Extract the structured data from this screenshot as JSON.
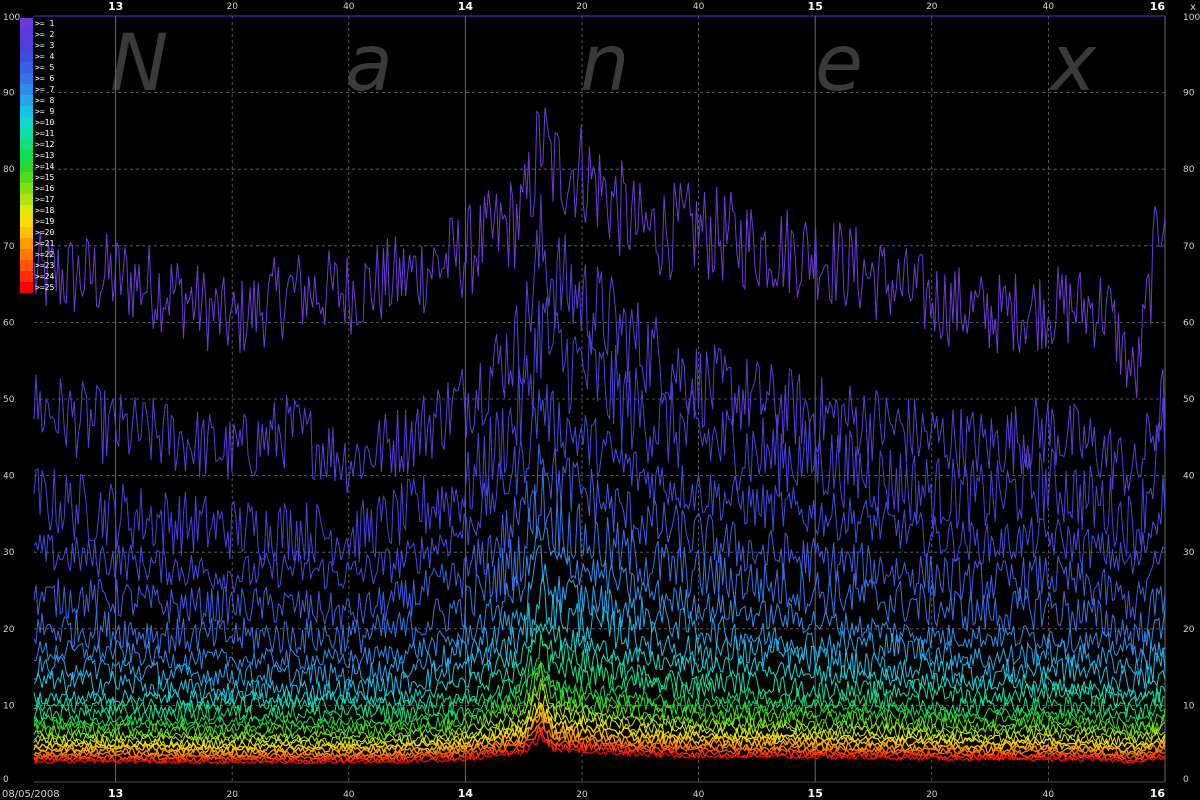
{
  "watermark": {
    "letters": [
      "N",
      "a",
      "n",
      "e",
      "x"
    ]
  },
  "date_label": "08/05/2008",
  "corner_label": "x",
  "chart_data": {
    "type": "line",
    "title": "",
    "xlabel": "",
    "ylabel": "",
    "ylim": [
      0,
      100
    ],
    "xlim": [
      "12:46",
      "16:00"
    ],
    "grid": true,
    "legend_position": "top-left",
    "y_ticks": [
      0,
      10,
      20,
      30,
      40,
      50,
      60,
      70,
      80,
      90,
      100
    ],
    "x_ticks": [
      {
        "time": "13:00",
        "label": "13",
        "major": true
      },
      {
        "time": "13:20",
        "label": "20",
        "major": false
      },
      {
        "time": "13:40",
        "label": "40",
        "major": false
      },
      {
        "time": "14:00",
        "label": "14",
        "major": true
      },
      {
        "time": "14:20",
        "label": "20",
        "major": false
      },
      {
        "time": "14:40",
        "label": "40",
        "major": false
      },
      {
        "time": "15:00",
        "label": "15",
        "major": true
      },
      {
        "time": "15:20",
        "label": "20",
        "major": false
      },
      {
        "time": "15:40",
        "label": "40",
        "major": false
      },
      {
        "time": "16:00",
        "label": "16",
        "major": true
      }
    ],
    "x": [
      "12:46",
      "13:00",
      "13:10",
      "13:20",
      "13:30",
      "13:40",
      "13:50",
      "14:00",
      "14:10",
      "14:13",
      "14:15",
      "14:20",
      "14:30",
      "14:40",
      "14:50",
      "15:00",
      "15:10",
      "15:20",
      "15:30",
      "15:40",
      "15:50",
      "15:55",
      "16:00"
    ],
    "series": [
      {
        "name": ">= 1",
        "color": "#6a3bd8",
        "values": [
          66,
          66,
          64,
          60,
          64,
          64,
          66,
          69,
          74,
          84,
          80,
          80,
          72,
          72,
          70,
          69,
          66,
          63,
          61,
          62,
          62,
          52,
          78
        ]
      },
      {
        "name": ">= 2",
        "color": "#5a3cd8",
        "values": [
          49,
          46,
          45,
          43,
          46,
          42,
          45,
          50,
          58,
          70,
          66,
          63,
          57,
          52,
          50,
          48,
          47,
          45,
          44,
          46,
          43,
          40,
          50
        ]
      },
      {
        "name": ">= 3",
        "color": "#4a40da",
        "values": [
          37,
          35,
          34,
          33,
          33,
          32,
          35,
          38,
          49,
          60,
          56,
          54,
          48,
          45,
          43,
          42,
          40,
          38,
          37,
          39,
          36,
          33,
          46
        ]
      },
      {
        "name": ">= 4",
        "color": "#3f4ce0",
        "values": [
          30,
          29,
          28,
          27,
          28,
          27,
          29,
          33,
          42,
          50,
          47,
          45,
          40,
          38,
          36,
          35,
          34,
          32,
          31,
          32,
          30,
          28,
          38
        ]
      },
      {
        "name": ">= 5",
        "color": "#3a5ee4",
        "values": [
          24,
          24,
          23,
          23,
          23,
          22,
          24,
          27,
          35,
          44,
          40,
          38,
          34,
          32,
          30,
          29,
          28,
          27,
          26,
          27,
          25,
          23,
          30
        ]
      },
      {
        "name": ">= 6",
        "color": "#3474e8",
        "values": [
          20,
          20,
          19,
          19,
          19,
          19,
          20,
          23,
          30,
          38,
          34,
          32,
          29,
          27,
          26,
          25,
          24,
          23,
          22,
          23,
          21,
          19,
          25
        ]
      },
      {
        "name": ">= 7",
        "color": "#2c8cec",
        "values": [
          17,
          17,
          16,
          16,
          16,
          16,
          17,
          19,
          26,
          33,
          29,
          28,
          25,
          23,
          22,
          21,
          20,
          19,
          19,
          19,
          18,
          17,
          21
        ]
      },
      {
        "name": ">= 8",
        "color": "#22a6ee",
        "values": [
          15,
          15,
          14,
          14,
          14,
          14,
          15,
          17,
          22,
          29,
          25,
          24,
          22,
          20,
          19,
          18,
          18,
          17,
          16,
          17,
          16,
          15,
          18
        ]
      },
      {
        "name": ">= 9",
        "color": "#18c2e8",
        "values": [
          13,
          13,
          12,
          12,
          12,
          12,
          13,
          15,
          19,
          25,
          22,
          21,
          19,
          17,
          17,
          16,
          15,
          15,
          14,
          15,
          14,
          13,
          16
        ]
      },
      {
        "name": ">=10",
        "color": "#10d8d0",
        "values": [
          11,
          11,
          11,
          11,
          11,
          11,
          11,
          13,
          17,
          22,
          19,
          18,
          16,
          15,
          15,
          14,
          14,
          13,
          13,
          13,
          12,
          11,
          14
        ]
      },
      {
        "name": ">=11",
        "color": "#0ce0a8",
        "values": [
          10,
          10,
          10,
          10,
          10,
          10,
          10,
          11,
          15,
          20,
          17,
          16,
          14,
          13,
          13,
          12,
          12,
          12,
          11,
          12,
          11,
          10,
          12
        ]
      },
      {
        "name": ">=12",
        "color": "#0ee080",
        "values": [
          9,
          9,
          9,
          9,
          9,
          9,
          9,
          10,
          13,
          18,
          15,
          14,
          13,
          12,
          11,
          11,
          11,
          10,
          10,
          10,
          10,
          9,
          11
        ]
      },
      {
        "name": ">=13",
        "color": "#14dc50",
        "values": [
          8,
          8,
          8,
          8,
          8,
          8,
          8,
          9,
          12,
          16,
          13,
          12,
          11,
          10,
          10,
          10,
          10,
          9,
          9,
          9,
          9,
          8,
          10
        ]
      },
      {
        "name": ">=14",
        "color": "#28d82c",
        "values": [
          7.4,
          7.4,
          7.3,
          7.2,
          7.3,
          7.2,
          7.4,
          8.2,
          11,
          15,
          12,
          11,
          10,
          9.4,
          9,
          9,
          8.8,
          8.4,
          8.2,
          8.4,
          8.1,
          7.4,
          8.8
        ]
      },
      {
        "name": ">=15",
        "color": "#50dc18",
        "values": [
          6.8,
          6.8,
          6.7,
          6.6,
          6.7,
          6.6,
          6.8,
          7.5,
          10,
          14,
          11,
          10,
          9.2,
          8.6,
          8.3,
          8.2,
          8,
          7.7,
          7.5,
          7.7,
          7.4,
          6.8,
          8
        ]
      },
      {
        "name": ">=16",
        "color": "#80e010",
        "values": [
          6.2,
          6.2,
          6.1,
          6,
          6.1,
          6,
          6.2,
          6.8,
          9,
          13,
          10,
          9.4,
          8.4,
          7.8,
          7.6,
          7.5,
          7.3,
          7,
          6.8,
          7,
          6.8,
          6.2,
          7.3
        ]
      },
      {
        "name": ">=17",
        "color": "#b0e40c",
        "values": [
          5.7,
          5.7,
          5.6,
          5.5,
          5.6,
          5.5,
          5.7,
          6.2,
          8.2,
          12,
          9.2,
          8.6,
          7.7,
          7.2,
          6.9,
          6.8,
          6.7,
          6.4,
          6.2,
          6.4,
          6.2,
          5.7,
          6.7
        ]
      },
      {
        "name": ">=18",
        "color": "#dce808",
        "values": [
          5.2,
          5.2,
          5.1,
          5,
          5.1,
          5,
          5.2,
          5.6,
          7.4,
          11,
          8.4,
          7.8,
          7,
          6.5,
          6.3,
          6.2,
          6.1,
          5.9,
          5.7,
          5.8,
          5.6,
          5.2,
          6.1
        ]
      },
      {
        "name": ">=19",
        "color": "#f4dc04",
        "values": [
          4.8,
          4.8,
          4.7,
          4.6,
          4.7,
          4.6,
          4.8,
          5.2,
          6.8,
          10,
          7.6,
          7.1,
          6.4,
          6,
          5.8,
          5.7,
          5.6,
          5.4,
          5.2,
          5.3,
          5.1,
          4.7,
          5.6
        ]
      },
      {
        "name": ">=20",
        "color": "#fcc000",
        "values": [
          4.4,
          4.4,
          4.3,
          4.2,
          4.3,
          4.2,
          4.4,
          4.8,
          6.2,
          9.2,
          7,
          6.5,
          5.8,
          5.5,
          5.3,
          5.2,
          5.1,
          4.9,
          4.7,
          4.8,
          4.6,
          4.3,
          5.1
        ]
      },
      {
        "name": ">=21",
        "color": "#ff9c00",
        "values": [
          4,
          4,
          3.9,
          3.8,
          3.9,
          3.8,
          4,
          4.4,
          5.7,
          8.5,
          6.4,
          5.9,
          5.3,
          5,
          4.8,
          4.7,
          4.6,
          4.5,
          4.3,
          4.4,
          4.2,
          3.9,
          4.6
        ]
      },
      {
        "name": ">=22",
        "color": "#ff7800",
        "values": [
          3.6,
          3.6,
          3.5,
          3.5,
          3.5,
          3.5,
          3.6,
          4,
          5.2,
          7.8,
          5.8,
          5.4,
          4.8,
          4.6,
          4.4,
          4.3,
          4.2,
          4.1,
          3.9,
          4,
          3.8,
          3.5,
          4.2
        ]
      },
      {
        "name": ">=23",
        "color": "#ff5400",
        "values": [
          3.3,
          3.3,
          3.2,
          3.2,
          3.2,
          3.2,
          3.3,
          3.6,
          4.7,
          7.1,
          5.3,
          4.9,
          4.4,
          4.2,
          4,
          3.9,
          3.8,
          3.7,
          3.6,
          3.6,
          3.5,
          3.2,
          3.8
        ]
      },
      {
        "name": ">=24",
        "color": "#ff3000",
        "values": [
          3,
          3,
          2.9,
          2.9,
          2.9,
          2.9,
          3,
          3.3,
          4.3,
          6.5,
          4.8,
          4.5,
          4,
          3.8,
          3.6,
          3.6,
          3.5,
          3.4,
          3.3,
          3.3,
          3.2,
          2.9,
          3.5
        ]
      },
      {
        "name": ">=25",
        "color": "#ff0000",
        "values": [
          2.7,
          2.7,
          2.6,
          2.6,
          2.6,
          2.6,
          2.7,
          3,
          3.9,
          5.9,
          4.4,
          4.1,
          3.6,
          3.4,
          3.3,
          3.3,
          3.2,
          3.1,
          3,
          3,
          2.9,
          2.6,
          3.2
        ]
      }
    ]
  }
}
